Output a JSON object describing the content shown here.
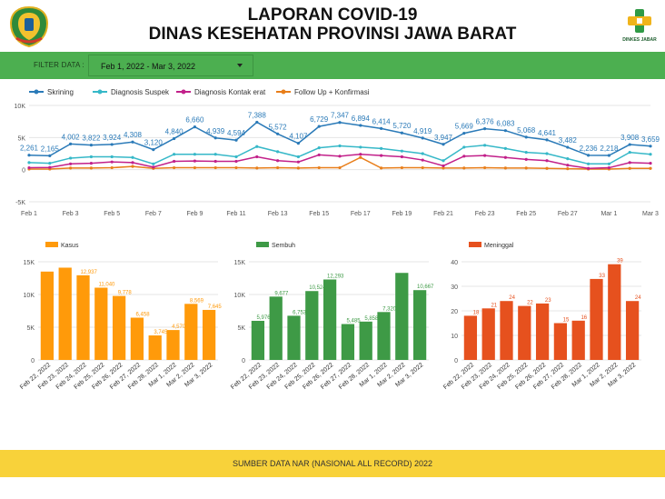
{
  "header": {
    "title_line1": "LAPORAN COVID-19",
    "title_line2": "DINAS KESEHATAN PROVINSI JAWA BARAT",
    "right_logo_text": "DINKES JABAR"
  },
  "filter": {
    "label": "FILTER DATA :",
    "value": "Feb 1, 2022 - Mar 3, 2022"
  },
  "footer": {
    "text": "SUMBER DATA NAR (NASIONAL ALL RECORD) 2022"
  },
  "colors": {
    "skrining": "#2a7ab8",
    "suspek": "#36b8c8",
    "kontak": "#c2208a",
    "followup": "#e87e1a",
    "kasus": "#ff9a0a",
    "sembuh": "#3e9a46",
    "meninggal": "#e6511e",
    "filterbar": "#4caf50",
    "footer": "#f8d23a"
  },
  "chart_data": [
    {
      "type": "line",
      "x": [
        "Feb 1",
        "Feb 2",
        "Feb 3",
        "Feb 4",
        "Feb 5",
        "Feb 6",
        "Feb 7",
        "Feb 8",
        "Feb 9",
        "Feb 10",
        "Feb 11",
        "Feb 12",
        "Feb 13",
        "Feb 14",
        "Feb 15",
        "Feb 16",
        "Feb 17",
        "Feb 18",
        "Feb 19",
        "Feb 20",
        "Feb 21",
        "Feb 22",
        "Feb 23",
        "Feb 24",
        "Feb 25",
        "Feb 26",
        "Feb 27",
        "Feb 28",
        "Mar 1",
        "Mar 2",
        "Mar 3"
      ],
      "xticks": [
        "Feb 1",
        "Feb 3",
        "Feb 5",
        "Feb 7",
        "Feb 9",
        "Feb 11",
        "Feb 13",
        "Feb 15",
        "Feb 17",
        "Feb 19",
        "Feb 21",
        "Feb 23",
        "Feb 25",
        "Feb 27",
        "Mar 1",
        "Mar 3"
      ],
      "ylim": [
        -5000,
        10000
      ],
      "yticks": [
        10000,
        5000,
        0,
        -5000
      ],
      "ytick_labels": [
        "10K",
        "5K",
        "0",
        "-5K"
      ],
      "grid": true,
      "legend_position": "top-left",
      "series": [
        {
          "name": "Skrining",
          "color_key": "skrining",
          "values": [
            2261,
            2165,
            4002,
            3822,
            3924,
            4308,
            3120,
            4840,
            6660,
            4939,
            4594,
            7388,
            5572,
            4107,
            6729,
            7347,
            6894,
            6414,
            5720,
            4919,
            3947,
            5669,
            6376,
            6083,
            5068,
            4641,
            3482,
            2236,
            2218,
            3908,
            3659
          ],
          "labels": [
            "2,261",
            "2,165",
            "4,002",
            "3,822",
            "3,924",
            "4,308",
            "3,120",
            "4,840",
            "6,660",
            "4,939",
            "4,594",
            "7,388",
            "5,572",
            "4,107",
            "6,729",
            "7,347",
            "6,894",
            "6,414",
            "5,720",
            "4,919",
            "3,947",
            "5,669",
            "6,376",
            "6,083",
            "5,068",
            "4,641",
            "3,482",
            "2,236",
            "2,218",
            "3,908",
            "3,659"
          ]
        },
        {
          "name": "Diagnosis Suspek",
          "color_key": "suspek",
          "values": [
            1100,
            1000,
            1800,
            2000,
            2000,
            1900,
            900,
            2400,
            2400,
            2400,
            2000,
            3600,
            2800,
            2000,
            3400,
            3700,
            3500,
            3300,
            2900,
            2500,
            1400,
            3500,
            3800,
            3300,
            2700,
            2500,
            1700,
            900,
            900,
            2700,
            2400
          ]
        },
        {
          "name": "Diagnosis Kontak erat",
          "color_key": "kontak",
          "values": [
            300,
            350,
            900,
            1000,
            1200,
            1100,
            400,
            1300,
            1350,
            1300,
            1300,
            2000,
            1400,
            1200,
            2300,
            2100,
            2400,
            2200,
            2000,
            1500,
            600,
            2100,
            2200,
            1900,
            1600,
            1400,
            700,
            200,
            300,
            1100,
            1000
          ]
        },
        {
          "name": "Follow Up + Konfirmasi",
          "color_key": "followup",
          "values": [
            100,
            100,
            250,
            250,
            300,
            500,
            200,
            300,
            300,
            300,
            300,
            250,
            300,
            250,
            300,
            300,
            1900,
            250,
            300,
            300,
            250,
            250,
            300,
            250,
            250,
            200,
            150,
            100,
            100,
            200,
            200
          ]
        }
      ]
    },
    {
      "type": "bar",
      "legend": "Kasus",
      "color_key": "kasus",
      "categories": [
        "Feb 22, 2022",
        "Feb 23, 2022",
        "Feb 24, 2022",
        "Feb 25, 2022",
        "Feb 26, 2022",
        "Feb 27, 2022",
        "Feb 28, 2022",
        "Mar 1, 2022",
        "Mar 2, 2022",
        "Mar 3, 2022"
      ],
      "values": [
        13500,
        14100,
        12937,
        11040,
        9778,
        6458,
        3745,
        4570,
        8569,
        7645
      ],
      "labels": [
        "",
        "",
        "12,937",
        "11,040",
        "9,778",
        "6,458",
        "3,745",
        "4,570",
        "8,569",
        "7,645"
      ],
      "ylim": [
        0,
        15000
      ],
      "yticks": [
        15000,
        10000,
        5000,
        0
      ],
      "ytick_labels": [
        "15K",
        "10K",
        "5K",
        "0"
      ]
    },
    {
      "type": "bar",
      "legend": "Sembuh",
      "color_key": "sembuh",
      "categories": [
        "Feb 22, 2022",
        "Feb 23, 2022",
        "Feb 24, 2022",
        "Feb 25, 2022",
        "Feb 26, 2022",
        "Feb 27, 2022",
        "Feb 28, 2022",
        "Mar 1, 2022",
        "Mar 2, 2022",
        "Mar 3, 2022"
      ],
      "values": [
        5976,
        9677,
        6753,
        10524,
        12293,
        5485,
        5858,
        7320,
        13300,
        10667
      ],
      "labels": [
        "5,976",
        "9,677",
        "6,753",
        "10,524",
        "12,293",
        "5,485",
        "5,858",
        "7,320",
        "",
        "10,667"
      ],
      "ylim": [
        0,
        15000
      ],
      "yticks": [
        15000,
        10000,
        5000,
        0
      ],
      "ytick_labels": [
        "15K",
        "10K",
        "5K",
        "0"
      ]
    },
    {
      "type": "bar",
      "legend": "Meninggal",
      "color_key": "meninggal",
      "categories": [
        "Feb 22, 2022",
        "Feb 23, 2022",
        "Feb 24, 2022",
        "Feb 25, 2022",
        "Feb 26, 2022",
        "Feb 27, 2022",
        "Feb 28, 2022",
        "Mar 1, 2022",
        "Mar 2, 2022",
        "Mar 3, 2022"
      ],
      "values": [
        18,
        21,
        24,
        22,
        23,
        15,
        16,
        33,
        39,
        24
      ],
      "labels": [
        "18",
        "21",
        "24",
        "22",
        "23",
        "15",
        "16",
        "33",
        "39",
        "24"
      ],
      "ylim": [
        0,
        40
      ],
      "yticks": [
        40,
        30,
        20,
        10,
        0
      ],
      "ytick_labels": [
        "40",
        "30",
        "20",
        "10",
        "0"
      ]
    }
  ]
}
